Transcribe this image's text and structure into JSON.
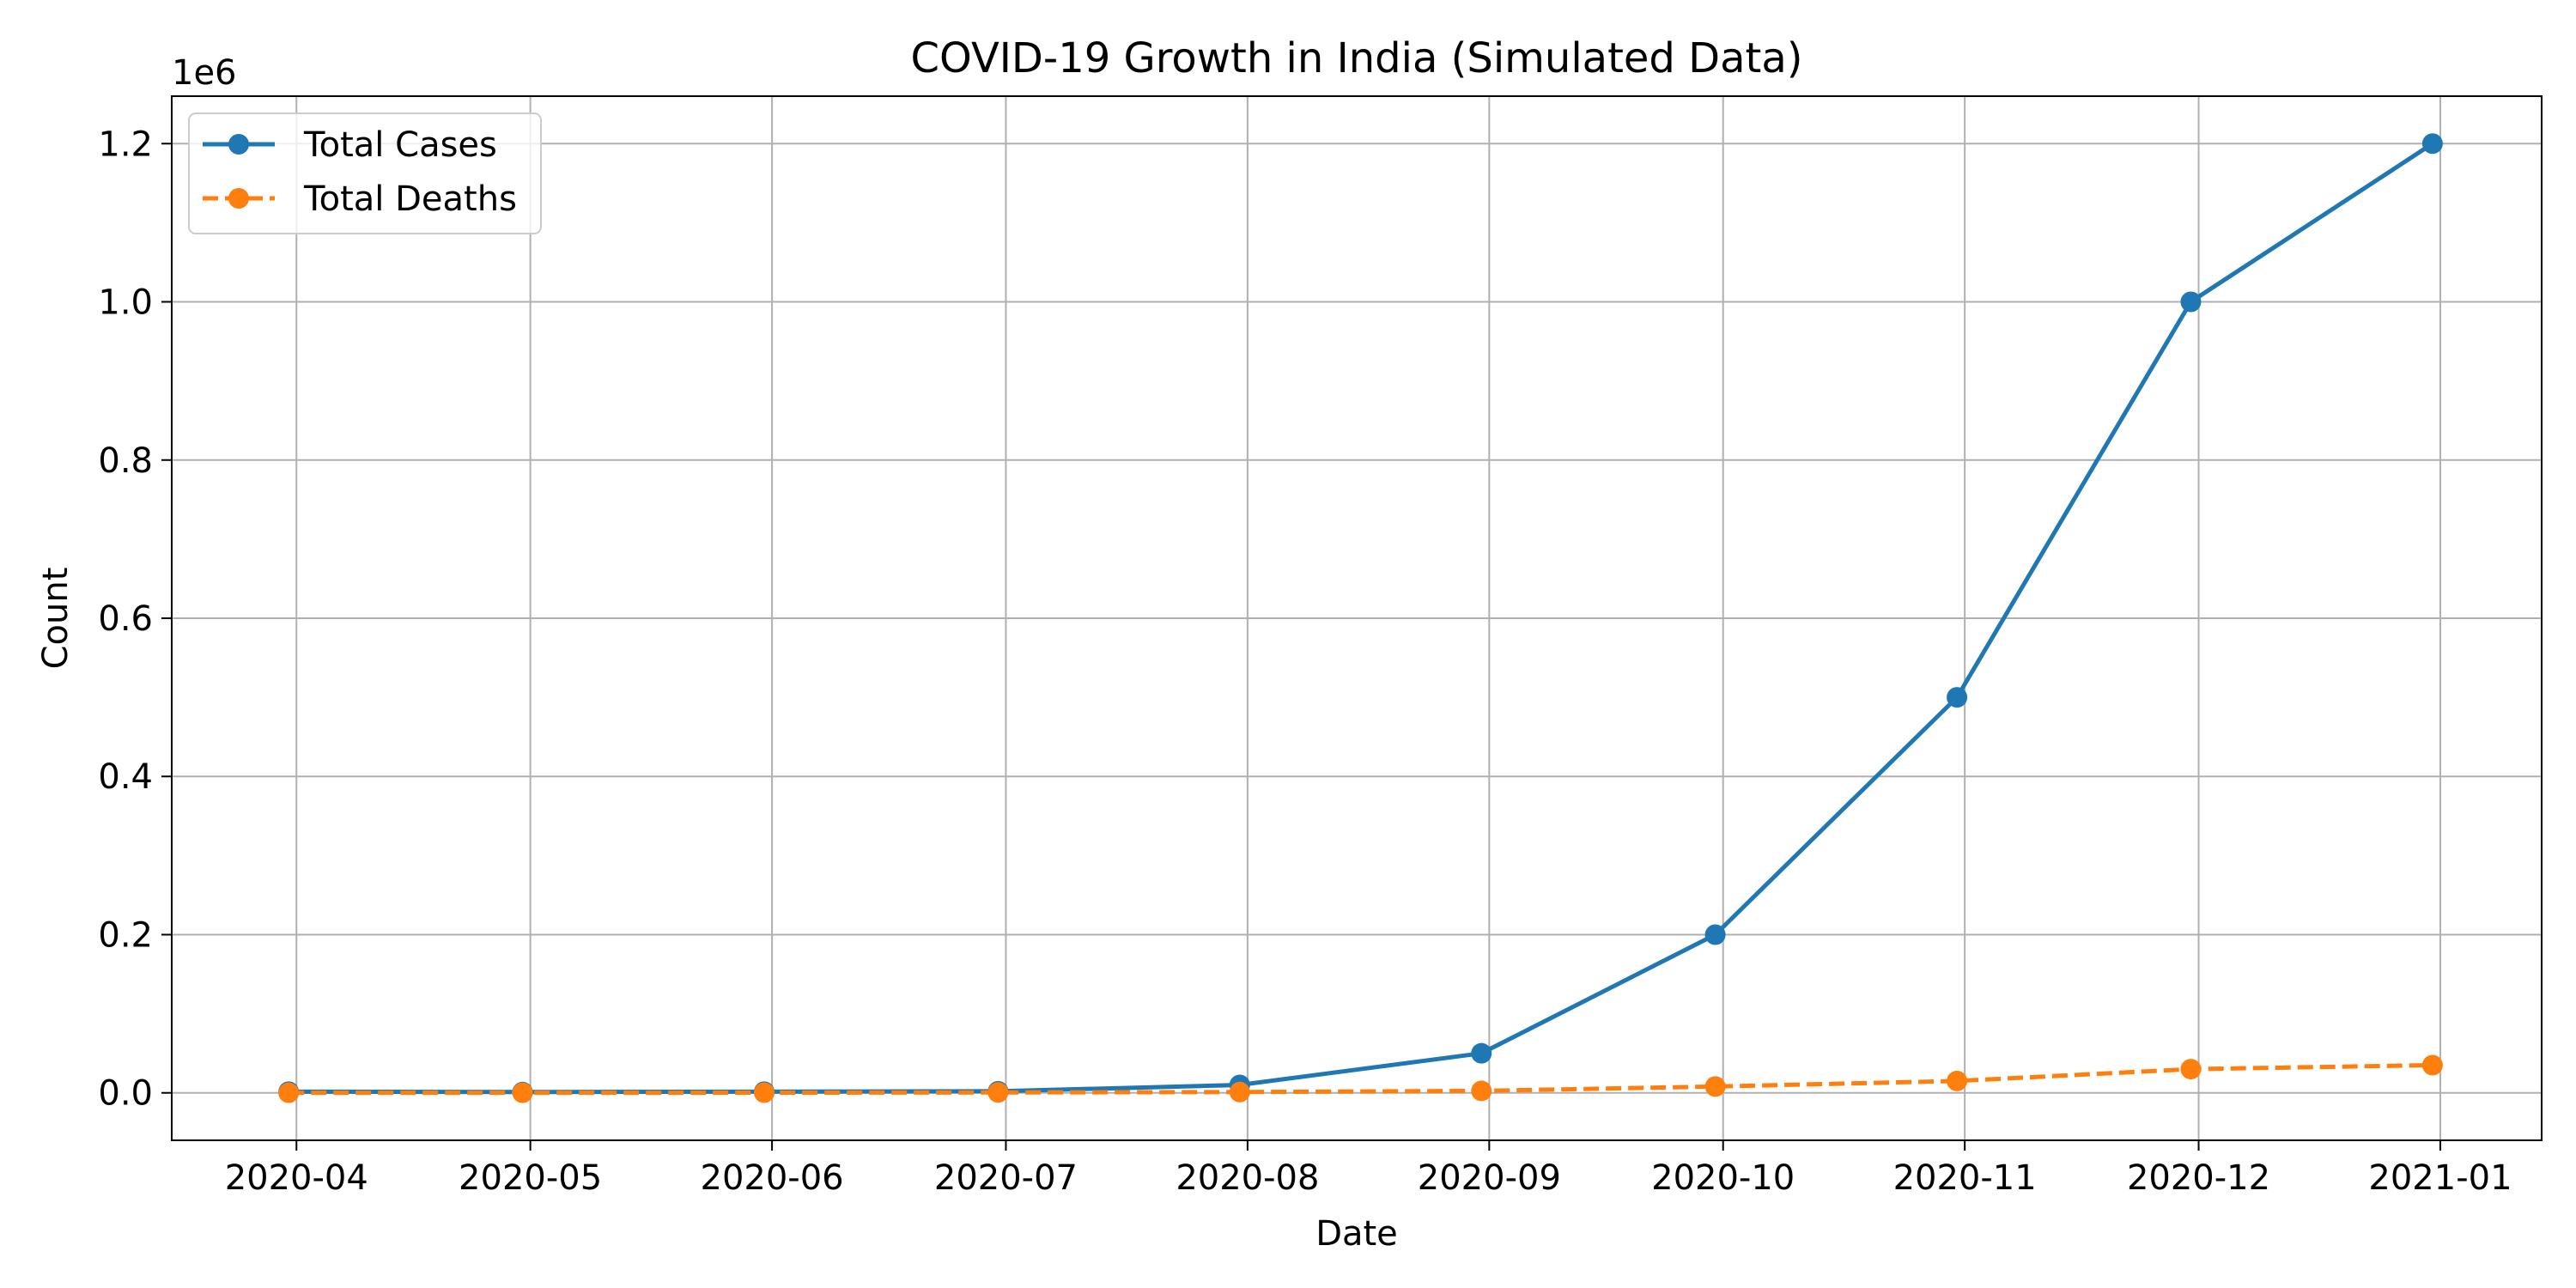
{
  "chart_data": {
    "type": "line",
    "title": "COVID-19 Growth in India (Simulated Data)",
    "xlabel": "Date",
    "ylabel": "Count",
    "y_offset_label": "1e6",
    "ylim": [
      -60000,
      1260000
    ],
    "x": [
      "2020-03-31",
      "2020-04-30",
      "2020-05-31",
      "2020-06-30",
      "2020-07-31",
      "2020-08-31",
      "2020-09-30",
      "2020-10-31",
      "2020-11-30",
      "2020-12-31"
    ],
    "xlim": [
      "2020-03-16",
      "2021-01-14"
    ],
    "xticks": [
      {
        "date": "2020-04-01",
        "label": "2020-04"
      },
      {
        "date": "2020-05-01",
        "label": "2020-05"
      },
      {
        "date": "2020-06-01",
        "label": "2020-06"
      },
      {
        "date": "2020-07-01",
        "label": "2020-07"
      },
      {
        "date": "2020-08-01",
        "label": "2020-08"
      },
      {
        "date": "2020-09-01",
        "label": "2020-09"
      },
      {
        "date": "2020-10-01",
        "label": "2020-10"
      },
      {
        "date": "2020-11-01",
        "label": "2020-11"
      },
      {
        "date": "2020-12-01",
        "label": "2020-12"
      },
      {
        "date": "2021-01-01",
        "label": "2021-01"
      }
    ],
    "yticks": [
      {
        "value": 0,
        "label": "0.0"
      },
      {
        "value": 200000,
        "label": "0.2"
      },
      {
        "value": 400000,
        "label": "0.4"
      },
      {
        "value": 600000,
        "label": "0.6"
      },
      {
        "value": 800000,
        "label": "0.8"
      },
      {
        "value": 1000000,
        "label": "1.0"
      },
      {
        "value": 1200000,
        "label": "1.2"
      }
    ],
    "grid": true,
    "legend_position": "top-left",
    "series": [
      {
        "name": "Total Cases",
        "color": "#1f77b4",
        "line_style": "solid",
        "marker": "circle",
        "values": [
          1500,
          1000,
          1500,
          2000,
          10000,
          50000,
          200000,
          500000,
          1000000,
          1200000
        ]
      },
      {
        "name": "Total Deaths",
        "color": "#ff7f0e",
        "line_style": "dashed",
        "marker": "circle",
        "values": [
          50,
          100,
          200,
          500,
          1000,
          2500,
          8000,
          15000,
          30000,
          35000
        ]
      }
    ]
  }
}
